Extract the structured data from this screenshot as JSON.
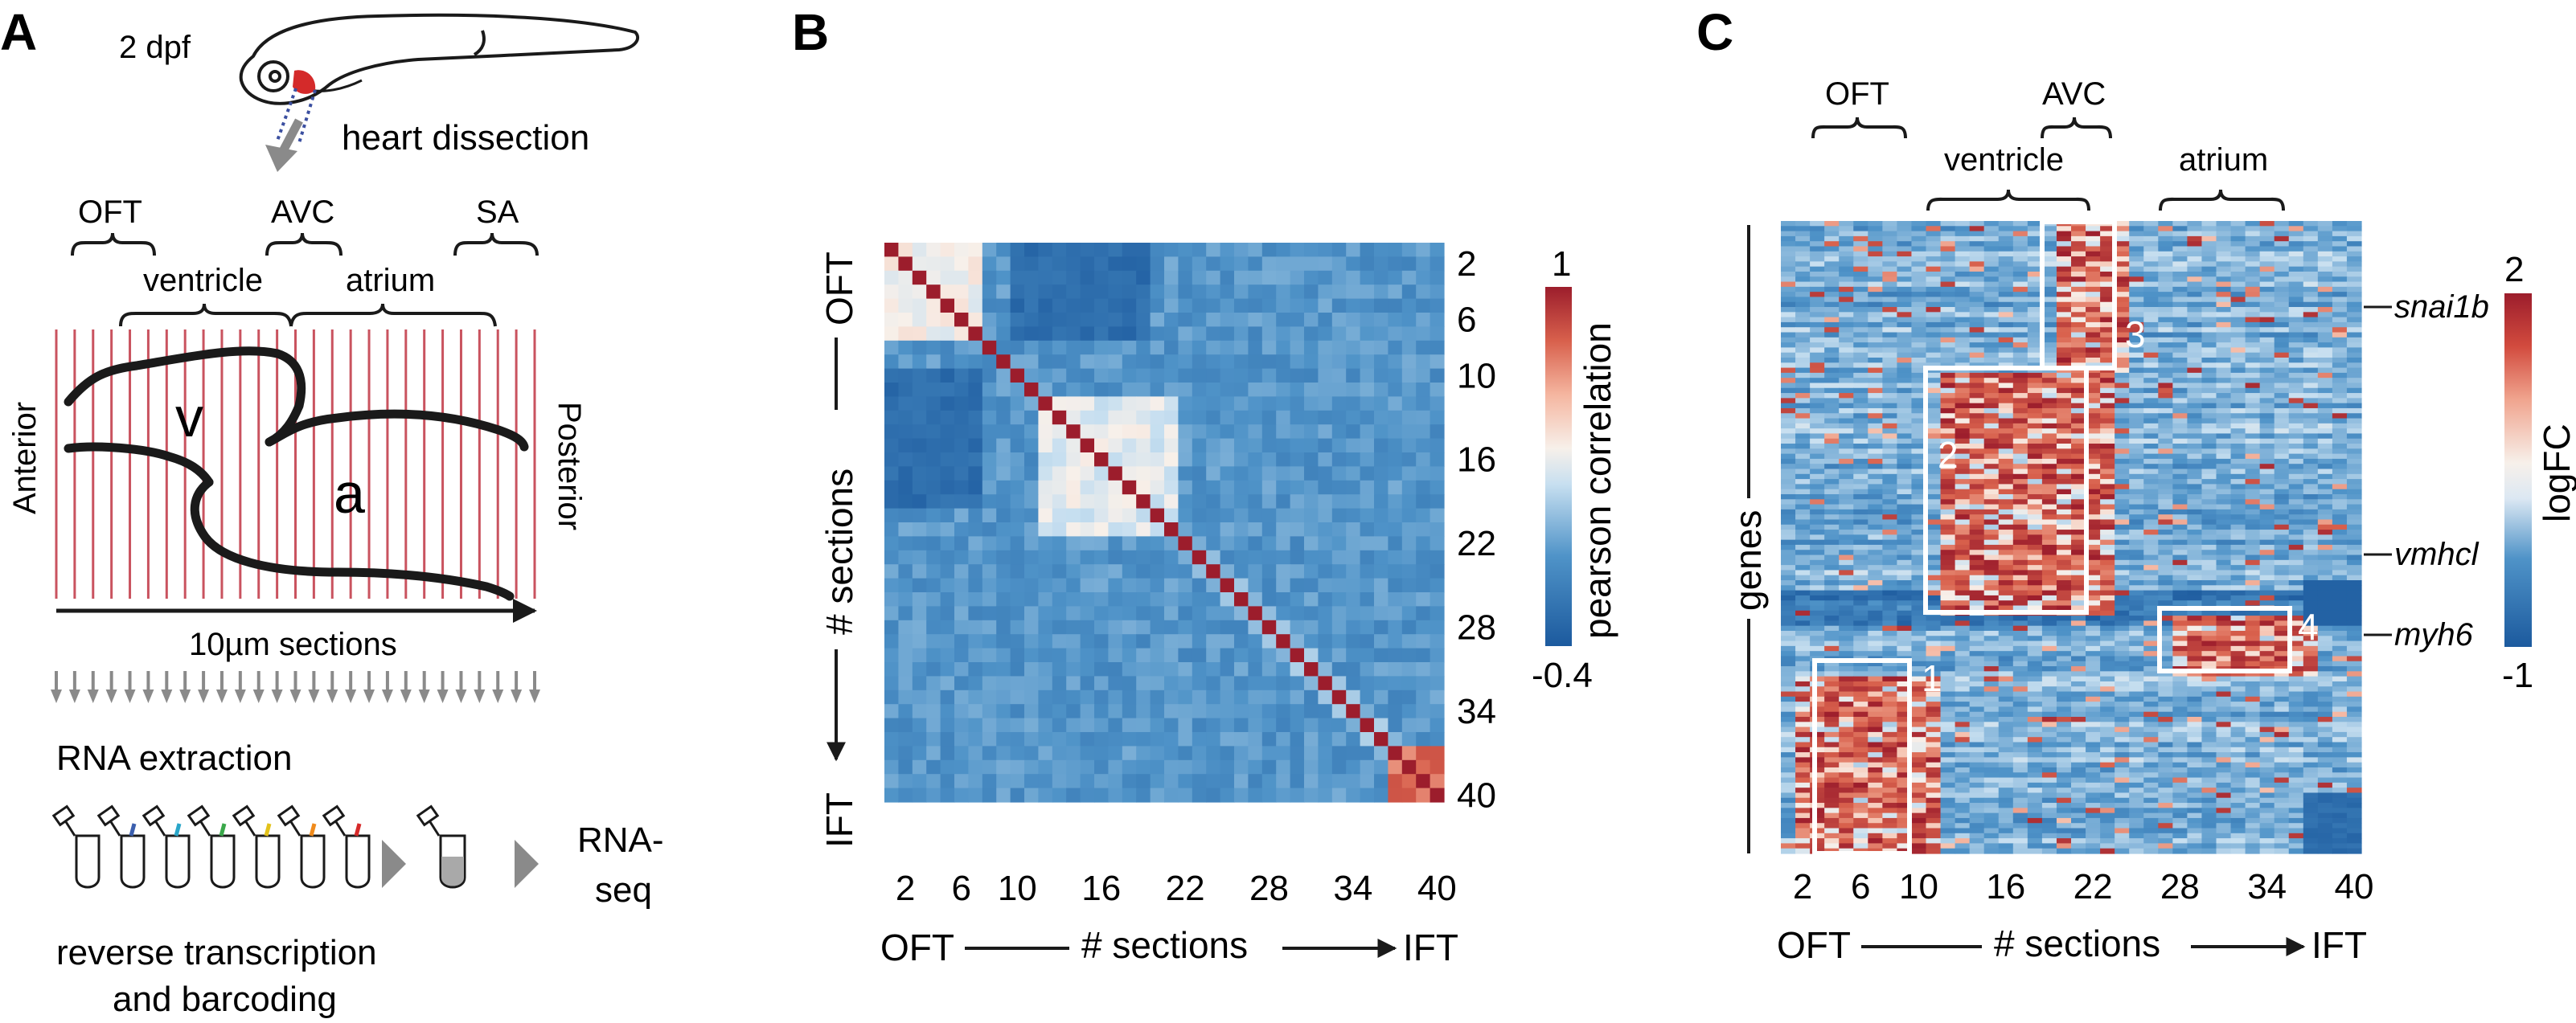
{
  "panels": {
    "A": {
      "letter": "A",
      "stage": "2 dpf",
      "dissection": "heart dissection",
      "regions_top": [
        "OFT",
        "AVC",
        "SA"
      ],
      "regions_bottom": [
        "ventricle",
        "atrium"
      ],
      "chamber_v": "v",
      "chamber_a": "a",
      "anterior": "Anterior",
      "posterior": "Posterior",
      "sections_label": "10µm sections",
      "rna_extraction": "RNA extraction",
      "rnaseq": "RNA-\nseq",
      "rt_line1": "reverse transcription",
      "rt_line2": "and barcoding",
      "n_sections": 27,
      "n_tubes": 7,
      "tube_colors": [
        "#3b5fae",
        "#2aa6c9",
        "#3aa84a",
        "#e3c21b",
        "#f08b1c",
        "#d62a2a"
      ]
    },
    "B": {
      "letter": "B",
      "axis_top": "OFT",
      "axis_bottom": "IFT",
      "axis_mid": "# sections",
      "x_left": "OFT",
      "x_mid": "# sections",
      "x_right": "IFT",
      "colorbar_label": "pearson correlation",
      "colorbar_max": "1",
      "colorbar_min": "-0.4"
    },
    "C": {
      "letter": "C",
      "regions": [
        "OFT",
        "AVC",
        "ventricle",
        "atrium"
      ],
      "y_label": "genes",
      "x_left": "OFT",
      "x_mid": "# sections",
      "x_right": "IFT",
      "colorbar_label": "logFC",
      "colorbar_max": "2",
      "colorbar_min": "-1",
      "genes": [
        "snai1b",
        "vmhcl",
        "myh6"
      ],
      "clusters": [
        "1",
        "2",
        "3",
        "4"
      ]
    }
  },
  "chart_data": [
    {
      "type": "heatmap",
      "panel": "B",
      "title": "",
      "n": 40,
      "x_ticks": [
        2,
        6,
        10,
        16,
        22,
        28,
        34,
        40
      ],
      "y_ticks": [
        2,
        6,
        10,
        16,
        22,
        28,
        34,
        40
      ],
      "xlabel": "# sections",
      "ylabel": "# sections",
      "colorbar": {
        "label": "pearson correlation",
        "range": [
          -0.4,
          1
        ]
      },
      "blocks": [
        {
          "sections": [
            1,
            7
          ],
          "within_correlation": 0.35
        },
        {
          "sections": [
            12,
            21
          ],
          "within_correlation": 0.3
        },
        {
          "sections": [
            37,
            40
          ],
          "within_correlation": 0.75
        }
      ],
      "anti_correlated": [
        {
          "rows": [
            1,
            7
          ],
          "cols": [
            10,
            19
          ],
          "correlation": -0.28
        },
        {
          "rows": [
            10,
            19
          ],
          "cols": [
            1,
            7
          ],
          "correlation": -0.28
        }
      ],
      "diagonal": 1
    },
    {
      "type": "heatmap",
      "panel": "C",
      "title": "",
      "x_ticks": [
        2,
        6,
        10,
        16,
        22,
        28,
        34,
        40
      ],
      "xlabel": "# sections",
      "ylabel": "genes",
      "colorbar": {
        "label": "logFC",
        "range": [
          -1,
          2
        ]
      },
      "clusters": [
        {
          "id": "1",
          "sections": [
            2,
            11
          ],
          "region": "OFT"
        },
        {
          "id": "2",
          "sections": [
            12,
            23
          ],
          "region": "ventricle"
        },
        {
          "id": "3",
          "sections": [
            20,
            24
          ],
          "region": "AVC",
          "gene": "snai1b"
        },
        {
          "id": "4",
          "sections": [
            28,
            37
          ],
          "region": "atrium",
          "gene": "myh6"
        }
      ],
      "labeled_genes": [
        "snai1b",
        "vmhcl",
        "myh6"
      ]
    }
  ]
}
